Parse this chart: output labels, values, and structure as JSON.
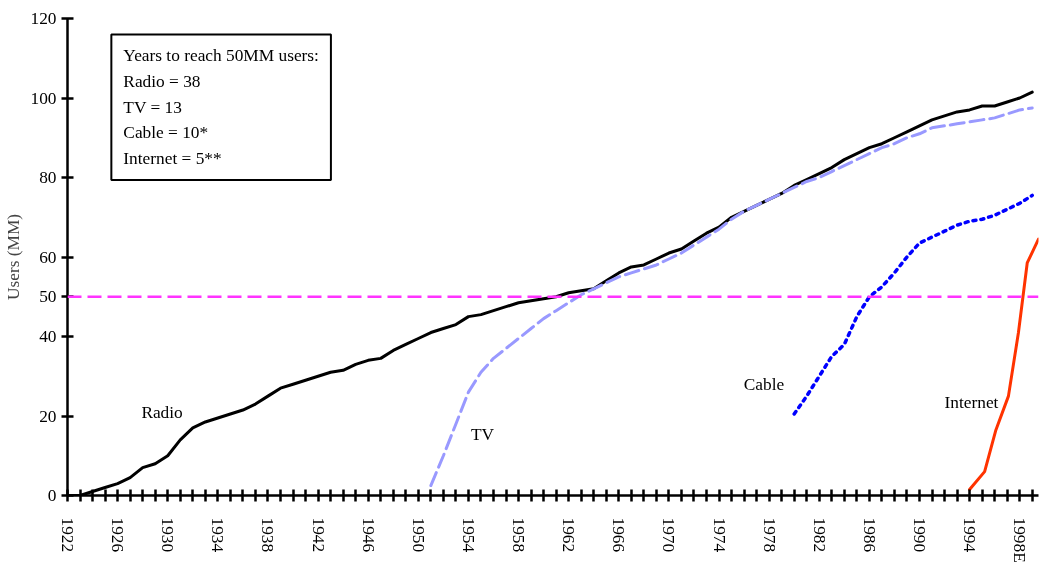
{
  "chart_data": {
    "type": "line",
    "ylabel": "Users (MM)",
    "xlim": [
      1922,
      1999.5
    ],
    "ylim": [
      0,
      120
    ],
    "xticks": [
      1922,
      {
        "value": 1923,
        "label": null
      },
      {
        "value": 1924,
        "label": null
      },
      {
        "value": 1925,
        "label": null
      },
      1926,
      {
        "value": 1927,
        "label": null
      },
      {
        "value": 1928,
        "label": null
      },
      {
        "value": 1929,
        "label": null
      },
      1930,
      {
        "value": 1931,
        "label": null
      },
      {
        "value": 1932,
        "label": null
      },
      {
        "value": 1933,
        "label": null
      },
      1934,
      {
        "value": 1935,
        "label": null
      },
      {
        "value": 1936,
        "label": null
      },
      {
        "value": 1937,
        "label": null
      },
      1938,
      {
        "value": 1939,
        "label": null
      },
      {
        "value": 1940,
        "label": null
      },
      {
        "value": 1941,
        "label": null
      },
      1942,
      {
        "value": 1943,
        "label": null
      },
      {
        "value": 1944,
        "label": null
      },
      {
        "value": 1945,
        "label": null
      },
      1946,
      {
        "value": 1947,
        "label": null
      },
      {
        "value": 1948,
        "label": null
      },
      {
        "value": 1949,
        "label": null
      },
      1950,
      {
        "value": 1951,
        "label": null
      },
      {
        "value": 1952,
        "label": null
      },
      {
        "value": 1953,
        "label": null
      },
      1954,
      {
        "value": 1955,
        "label": null
      },
      {
        "value": 1956,
        "label": null
      },
      {
        "value": 1957,
        "label": null
      },
      1958,
      {
        "value": 1959,
        "label": null
      },
      {
        "value": 1960,
        "label": null
      },
      {
        "value": 1961,
        "label": null
      },
      1962,
      {
        "value": 1963,
        "label": null
      },
      {
        "value": 1964,
        "label": null
      },
      {
        "value": 1965,
        "label": null
      },
      1966,
      {
        "value": 1967,
        "label": null
      },
      {
        "value": 1968,
        "label": null
      },
      {
        "value": 1969,
        "label": null
      },
      1970,
      {
        "value": 1971,
        "label": null
      },
      {
        "value": 1972,
        "label": null
      },
      {
        "value": 1973,
        "label": null
      },
      1974,
      {
        "value": 1975,
        "label": null
      },
      {
        "value": 1976,
        "label": null
      },
      {
        "value": 1977,
        "label": null
      },
      1978,
      {
        "value": 1979,
        "label": null
      },
      {
        "value": 1980,
        "label": null
      },
      {
        "value": 1981,
        "label": null
      },
      1982,
      {
        "value": 1983,
        "label": null
      },
      {
        "value": 1984,
        "label": null
      },
      {
        "value": 1985,
        "label": null
      },
      1986,
      {
        "value": 1987,
        "label": null
      },
      {
        "value": 1988,
        "label": null
      },
      {
        "value": 1989,
        "label": null
      },
      1990,
      {
        "value": 1991,
        "label": null
      },
      {
        "value": 1992,
        "label": null
      },
      {
        "value": 1993,
        "label": null
      },
      1994,
      {
        "value": 1995,
        "label": null
      },
      {
        "value": 1996,
        "label": null
      },
      {
        "value": 1997,
        "label": null
      },
      {
        "value": 1998,
        "label": "1998E"
      },
      {
        "value": 1999,
        "label": null
      }
    ],
    "yticks": [
      0,
      20,
      40,
      50,
      60,
      80,
      100,
      120
    ],
    "grid": false,
    "legend": false,
    "series": [
      {
        "name": "Radio",
        "color": "#000000",
        "line_style": "solid",
        "x": [
          1922,
          1923,
          1924,
          1925,
          1926,
          1927,
          1928,
          1929,
          1930,
          1931,
          1932,
          1933,
          1934,
          1935,
          1936,
          1937,
          1938,
          1939,
          1940,
          1941,
          1942,
          1943,
          1944,
          1945,
          1946,
          1947,
          1948,
          1949,
          1950,
          1951,
          1952,
          1953,
          1954,
          1955,
          1956,
          1957,
          1958,
          1959,
          1960,
          1961,
          1962,
          1963,
          1964,
          1965,
          1966,
          1967,
          1968,
          1969,
          1970,
          1971,
          1972,
          1973,
          1974,
          1975,
          1976,
          1977,
          1978,
          1979,
          1980,
          1981,
          1982,
          1983,
          1984,
          1985,
          1986,
          1987,
          1988,
          1989,
          1990,
          1991,
          1992,
          1993,
          1994,
          1995,
          1996,
          1997,
          1998,
          1999
        ],
        "values": [
          0,
          0,
          1,
          2,
          3,
          4.5,
          7,
          8,
          10,
          14,
          17,
          18.5,
          19.5,
          20.5,
          21.5,
          23,
          25,
          27,
          28,
          29,
          30,
          31,
          31.5,
          33,
          34,
          34.5,
          36.5,
          38,
          39.5,
          41,
          42,
          43,
          45,
          45.5,
          46.5,
          47.5,
          48.5,
          49,
          49.5,
          50,
          51,
          51.5,
          52,
          54,
          56,
          57.5,
          58,
          59.5,
          61,
          62,
          64,
          66,
          67.5,
          70,
          71.5,
          73,
          74.5,
          76,
          78,
          79.5,
          81,
          82.5,
          84.5,
          86,
          87.5,
          88.5,
          90,
          91.5,
          93,
          94.5,
          95.5,
          96.5,
          97,
          98,
          98,
          99,
          100,
          101.5
        ]
      },
      {
        "name": "TV",
        "color": "#9999ff",
        "line_style": "dashed",
        "x": [
          1951,
          1952,
          1953,
          1954,
          1955,
          1956,
          1957,
          1958,
          1959,
          1960,
          1961,
          1962,
          1963,
          1964,
          1965,
          1966,
          1967,
          1968,
          1969,
          1970,
          1971,
          1972,
          1973,
          1974,
          1975,
          1976,
          1977,
          1978,
          1979,
          1980,
          1981,
          1982,
          1983,
          1984,
          1985,
          1986,
          1987,
          1988,
          1989,
          1990,
          1991,
          1992,
          1993,
          1994,
          1995,
          1996,
          1997,
          1998,
          1999
        ],
        "values": [
          2.5,
          10,
          18,
          26,
          31,
          34.5,
          37,
          39.5,
          42,
          44.5,
          46.5,
          48.5,
          50.5,
          52,
          53.5,
          55,
          56,
          57,
          58,
          59.5,
          61,
          63,
          65,
          67,
          69.5,
          71.5,
          73,
          74.5,
          76,
          77.5,
          79,
          80,
          81.5,
          83,
          84.5,
          86,
          87.5,
          88.5,
          90,
          91,
          92.5,
          93,
          93.5,
          94,
          94.5,
          95,
          96,
          97,
          97.5
        ]
      },
      {
        "name": "Cable",
        "color": "#0000ff",
        "line_style": "dotted",
        "x": [
          1980,
          1981,
          1982,
          1983,
          1984,
          1985,
          1986,
          1987,
          1988,
          1989,
          1990,
          1991,
          1992,
          1993,
          1994,
          1995,
          1996,
          1997,
          1998,
          1999
        ],
        "values": [
          20.5,
          25,
          30,
          35,
          38,
          45,
          50,
          52.5,
          56,
          60,
          63.5,
          65,
          66.5,
          68,
          69,
          69.5,
          70.5,
          72,
          73.5,
          75.5
        ]
      },
      {
        "name": "Internet",
        "color": "#ff3300",
        "line_style": "solid",
        "x": [
          1994,
          1995.2,
          1996.1,
          1997.1,
          1997.9,
          1998.6,
          1999.5
        ],
        "values": [
          1.5,
          6,
          16.5,
          25,
          41,
          58.5,
          64.5
        ]
      }
    ],
    "ref_lines": [
      {
        "axis": "y",
        "value": 50,
        "label": null,
        "color": "#ff33ff",
        "line_style": "dashed"
      }
    ],
    "annotations": [
      "Years to reach 50MM users:",
      "Radio = 38",
      "TV = 13",
      "Cable = 10*",
      "Internet = 5**"
    ]
  }
}
